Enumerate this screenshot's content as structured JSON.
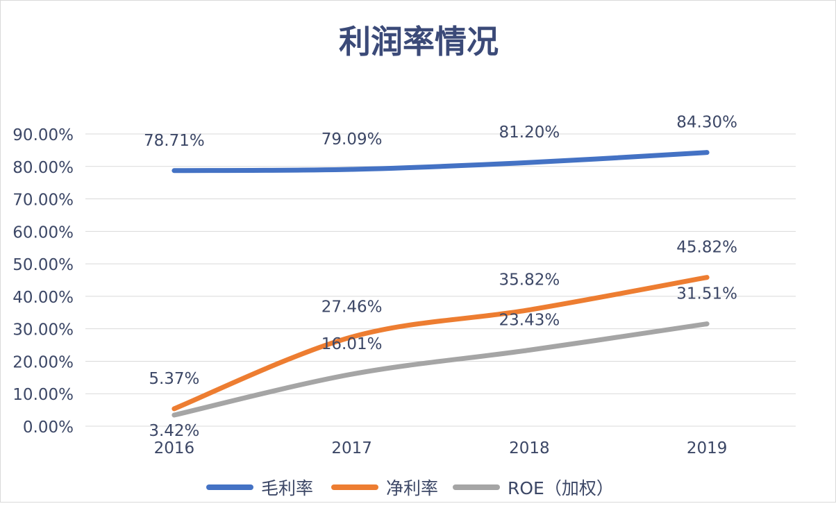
{
  "chart_data": {
    "type": "line",
    "title": "利润率情况",
    "categories": [
      "2016",
      "2017",
      "2018",
      "2019"
    ],
    "series": [
      {
        "name": "毛利率",
        "values": [
          78.71,
          79.09,
          81.2,
          84.3
        ],
        "labels": [
          "78.71%",
          "79.09%",
          "81.20%",
          "84.30%"
        ],
        "color": "#4472c4"
      },
      {
        "name": "净利率",
        "values": [
          5.37,
          27.46,
          35.82,
          45.82
        ],
        "labels": [
          "5.37%",
          "27.46%",
          "35.82%",
          "45.82%"
        ],
        "color": "#ed7d31"
      },
      {
        "name": "ROE（加权）",
        "values": [
          3.42,
          16.01,
          23.43,
          31.51
        ],
        "labels": [
          "3.42%",
          "16.01%",
          "23.43%",
          "31.51%"
        ],
        "color": "#a5a5a5"
      }
    ],
    "yticks": [
      "0.00%",
      "10.00%",
      "20.00%",
      "30.00%",
      "40.00%",
      "50.00%",
      "60.00%",
      "70.00%",
      "80.00%",
      "90.00%"
    ],
    "ylim": [
      0,
      90
    ],
    "grid": true,
    "smooth": true,
    "legend": "bottom",
    "xlabel": "",
    "ylabel": ""
  }
}
